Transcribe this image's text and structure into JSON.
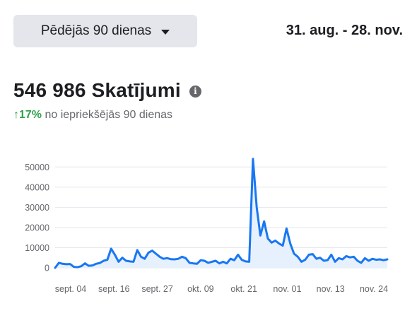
{
  "header": {
    "range_label": "Pēdējās 90 dienas",
    "range_icon": "caret-down-icon",
    "date_range": "31. aug. - 28. nov."
  },
  "summary": {
    "value": "546 986 Skatījumi",
    "info_icon": "info-icon",
    "change_arrow": "↑",
    "change_pct": "17%",
    "change_text": " no iepriekšējās 90 dienas"
  },
  "colors": {
    "line": "#1877f2",
    "fill": "#e7f0fd",
    "positive": "#31a24c"
  },
  "chart_data": {
    "type": "area",
    "x_ticks": [
      "sept. 04",
      "sept. 16",
      "sept. 27",
      "okt. 09",
      "okt. 21",
      "nov. 01",
      "nov. 13",
      "nov. 24"
    ],
    "y_ticks": [
      0,
      10000,
      20000,
      30000,
      40000,
      50000
    ],
    "ylim": [
      0,
      55000
    ],
    "grid": true,
    "series": [
      {
        "values": [
          0,
          2500,
          2000,
          1800,
          1900,
          500,
          300,
          800,
          2200,
          1000,
          1200,
          2000,
          2400,
          3500,
          4000,
          9500,
          6500,
          3000,
          5000,
          3500,
          3200,
          3000,
          8800,
          5500,
          4500,
          7500,
          8500,
          7000,
          5500,
          4500,
          4800,
          4300,
          4200,
          4500,
          5500,
          4800,
          2500,
          2200,
          2000,
          3800,
          3500,
          2500,
          3000,
          3500,
          2200,
          3000,
          2200,
          4500,
          3800,
          6500,
          4000,
          3200,
          3000,
          54000,
          30000,
          16000,
          23000,
          14500,
          12500,
          13500,
          12000,
          11000,
          19500,
          12000,
          7000,
          5500,
          3000,
          4000,
          6500,
          6800,
          4500,
          5000,
          3500,
          3800,
          6500,
          3000,
          4800,
          4200,
          5800,
          5200,
          5500,
          3500,
          2500,
          4800,
          3500,
          4500,
          4000,
          4200,
          3800,
          4200
        ]
      }
    ]
  }
}
